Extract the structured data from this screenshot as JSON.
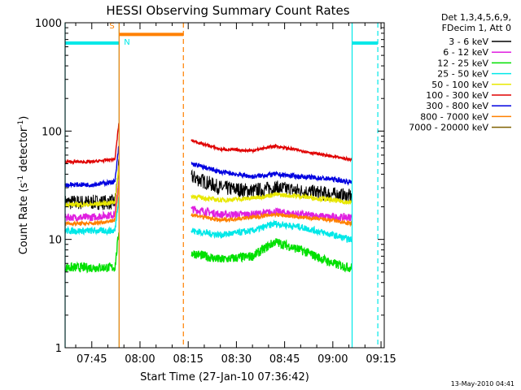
{
  "chart_data": {
    "type": "line",
    "title": "HESSI Observing Summary Count Rates",
    "xlabel": "Start Time (27-Jan-10 07:36:42)",
    "ylabel_main": "Count Rate (s",
    "ylabel_sup1": "-1",
    "ylabel_mid": " detector",
    "ylabel_sup2": "-1",
    "ylabel_end": ")",
    "y_scale": "log",
    "ylim": [
      1,
      1000
    ],
    "xlim": [
      "07:36:42",
      "09:16:00"
    ],
    "y_ticks": [
      "1",
      "10",
      "100",
      "1000"
    ],
    "x_ticks": [
      "07:45",
      "08:00",
      "08:15",
      "08:30",
      "08:45",
      "09:00",
      "09:15"
    ],
    "legend_header": [
      "Det 1,3,4,5,6,9,",
      "FDecim 1, Att 0"
    ],
    "legend_placement": "right",
    "gaps": [
      [
        "07:53:30",
        "08:16:00"
      ],
      [
        "09:06:00",
        "09:16:00"
      ]
    ],
    "series": [
      {
        "name": "3 - 6 keV",
        "color": "#000000",
        "x": [
          "07:36:42",
          "07:45",
          "07:52",
          "08:16",
          "08:25",
          "08:35",
          "08:42",
          "08:50",
          "09:00",
          "09:05"
        ],
        "values": [
          22,
          22,
          22,
          38,
          30,
          28,
          30,
          28,
          26,
          25
        ]
      },
      {
        "name": "6 - 12 keV",
        "color": "#e020e0",
        "x": [
          "07:36:42",
          "07:45",
          "07:52",
          "08:16",
          "08:25",
          "08:35",
          "08:42",
          "08:50",
          "09:00",
          "09:05"
        ],
        "values": [
          16,
          16,
          17,
          19,
          17,
          17,
          18,
          17,
          16,
          16
        ]
      },
      {
        "name": "12 - 25 keV",
        "color": "#00e000",
        "x": [
          "07:36:42",
          "07:45",
          "07:52",
          "08:16",
          "08:25",
          "08:35",
          "08:42",
          "08:50",
          "09:00",
          "09:05"
        ],
        "values": [
          5.5,
          5.5,
          5.5,
          7.5,
          6.5,
          7.0,
          9.5,
          8.0,
          6.0,
          5.5
        ]
      },
      {
        "name": "25 - 50 keV",
        "color": "#00e8e8",
        "x": [
          "07:36:42",
          "07:45",
          "07:52",
          "08:16",
          "08:25",
          "08:35",
          "08:42",
          "08:50",
          "09:00",
          "09:05"
        ],
        "values": [
          12,
          12,
          12,
          12,
          11,
          12,
          14,
          13,
          11,
          10
        ]
      },
      {
        "name": "50 - 100 keV",
        "color": "#e8e800",
        "x": [
          "07:36:42",
          "07:45",
          "07:52",
          "08:16",
          "08:25",
          "08:35",
          "08:42",
          "08:50",
          "09:00",
          "09:05"
        ],
        "values": [
          21,
          21,
          22,
          25,
          23,
          24,
          26,
          25,
          23,
          22
        ]
      },
      {
        "name": "100 - 300 keV",
        "color": "#e00000",
        "x": [
          "07:36:42",
          "07:45",
          "07:52",
          "08:16",
          "08:25",
          "08:35",
          "08:42",
          "08:50",
          "09:00",
          "09:05"
        ],
        "values": [
          52,
          52,
          55,
          82,
          68,
          66,
          73,
          66,
          58,
          55
        ]
      },
      {
        "name": "300 - 800 keV",
        "color": "#0000e0",
        "x": [
          "07:36:42",
          "07:45",
          "07:52",
          "08:16",
          "08:25",
          "08:35",
          "08:42",
          "08:50",
          "09:00",
          "09:05"
        ],
        "values": [
          32,
          32,
          34,
          50,
          42,
          38,
          40,
          38,
          36,
          34
        ]
      },
      {
        "name": "800 - 7000 keV",
        "color": "#ff8000",
        "x": [
          "07:36:42",
          "07:45",
          "07:52",
          "08:16",
          "08:25",
          "08:35",
          "08:42",
          "08:50",
          "09:00",
          "09:05"
        ],
        "values": [
          14,
          14,
          15,
          17,
          15,
          16,
          17,
          16,
          15,
          14
        ]
      },
      {
        "name": "7000 - 20000 keV",
        "color": "#7f6000",
        "x": [],
        "values": []
      }
    ],
    "annotations": [
      {
        "label": "S",
        "color": "#ff8000",
        "x": "07:53:30",
        "y": 800
      },
      {
        "label": "N",
        "color": "#00e8e8",
        "x": "07:54:00",
        "y": 720
      }
    ],
    "flags": [
      {
        "color": "#00e8e8",
        "y": 650,
        "x": [
          "07:36:42",
          "07:53:30"
        ],
        "line_start": "solid",
        "line_end": "solid"
      },
      {
        "color": "#ff8000",
        "y": 780,
        "x": [
          "07:53:30",
          "08:13:30"
        ],
        "line_start": "solid",
        "line_end": "dashed"
      },
      {
        "color": "#00e8e8",
        "y": 650,
        "x": [
          "09:06:00",
          "09:14:00"
        ],
        "line_start": "solid",
        "line_end": "dashed"
      }
    ]
  },
  "footer_date": "13-May-2010 04:41"
}
